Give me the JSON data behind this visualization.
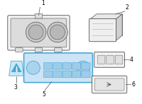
{
  "bg_color": "#ffffff",
  "line_color": "#505050",
  "highlight_color": "#4aa8d8",
  "label_color": "#000000",
  "lw_main": 0.6,
  "lw_leader": 0.5,
  "fs_label": 5.5
}
